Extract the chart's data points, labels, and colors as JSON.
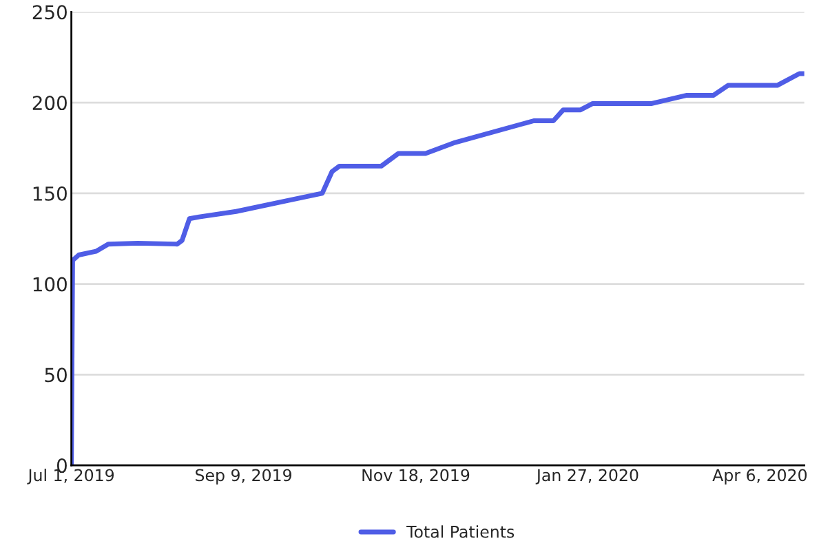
{
  "chart_data": {
    "type": "line",
    "x": [
      "2019-07-01",
      "2019-07-01T12:00",
      "2019-07-04",
      "2019-07-11",
      "2019-07-16",
      "2019-07-28",
      "2019-08-13",
      "2019-08-15",
      "2019-08-18",
      "2019-08-22",
      "2019-09-06",
      "2019-09-27",
      "2019-10-11",
      "2019-10-15",
      "2019-10-18",
      "2019-11-04",
      "2019-11-11",
      "2019-11-22",
      "2019-12-04",
      "2020-01-05",
      "2020-01-13",
      "2020-01-17",
      "2020-01-24",
      "2020-01-29",
      "2020-02-22",
      "2020-03-07",
      "2020-03-18",
      "2020-03-24",
      "2020-04-13",
      "2020-04-22",
      "2020-04-24"
    ],
    "series": [
      {
        "name": "Total Patients",
        "color": "#4f5de6",
        "values": [
          0,
          113,
          116,
          118,
          122,
          122.5,
          122,
          124,
          136,
          137,
          140,
          146,
          150,
          162,
          165,
          165,
          172,
          172,
          178,
          190,
          190,
          196,
          196,
          199.5,
          199.5,
          204,
          204,
          209.5,
          209.5,
          216,
          216
        ]
      }
    ],
    "xlim": [
      "2019-07-01",
      "2020-04-24"
    ],
    "xticks": [
      {
        "value": "2019-07-01",
        "label": "Jul 1, 2019"
      },
      {
        "value": "2019-09-09",
        "label": "Sep 9, 2019"
      },
      {
        "value": "2019-11-18",
        "label": "Nov 18, 2019"
      },
      {
        "value": "2020-01-27",
        "label": "Jan 27, 2020"
      },
      {
        "value": "2020-04-06",
        "label": "Apr 6, 2020"
      }
    ],
    "ylim": [
      0,
      250
    ],
    "yticks": [
      0,
      50,
      100,
      150,
      200,
      250
    ],
    "grid": "y",
    "legend": "bottom",
    "marker": "none",
    "line_style": "solid"
  }
}
